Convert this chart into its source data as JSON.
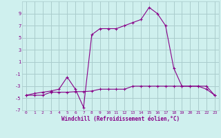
{
  "xlabel": "Windchill (Refroidissement éolien,°C)",
  "background_color": "#cff0ee",
  "grid_color": "#aacccc",
  "line_color": "#880088",
  "xlim": [
    -0.5,
    23.5
  ],
  "ylim": [
    -7,
    11
  ],
  "xticks": [
    0,
    1,
    2,
    3,
    4,
    5,
    6,
    7,
    8,
    9,
    10,
    11,
    12,
    13,
    14,
    15,
    16,
    17,
    18,
    19,
    20,
    21,
    22,
    23
  ],
  "yticks": [
    -7,
    -5,
    -3,
    -1,
    1,
    3,
    5,
    7,
    9
  ],
  "series1_x": [
    0,
    1,
    2,
    3,
    4,
    5,
    6,
    7,
    8,
    9,
    10,
    11,
    12,
    13,
    14,
    15,
    16,
    17,
    18,
    19,
    20,
    21,
    22,
    23
  ],
  "series1_y": [
    -4.5,
    -4.5,
    -4.5,
    -4,
    -4,
    -4,
    -3.9,
    -3.9,
    -3.8,
    -3.5,
    -3.5,
    -3.5,
    -3.5,
    -3,
    -3,
    -3,
    -3,
    -3,
    -3,
    -3,
    -3,
    -3,
    -3,
    -4.5
  ],
  "series2_x": [
    0,
    1,
    2,
    3,
    4,
    5,
    6,
    7,
    8,
    9,
    10,
    11,
    12,
    13,
    14,
    15,
    16,
    17,
    18,
    19,
    20,
    21,
    22,
    23
  ],
  "series2_y": [
    -4.5,
    -4.2,
    -4,
    -3.8,
    -3.5,
    -1.5,
    -3.5,
    -6.5,
    5.5,
    6.5,
    6.5,
    6.5,
    7,
    7.5,
    8,
    10,
    9,
    7,
    0,
    -3,
    -3,
    -3,
    -3.5,
    -4.5
  ]
}
